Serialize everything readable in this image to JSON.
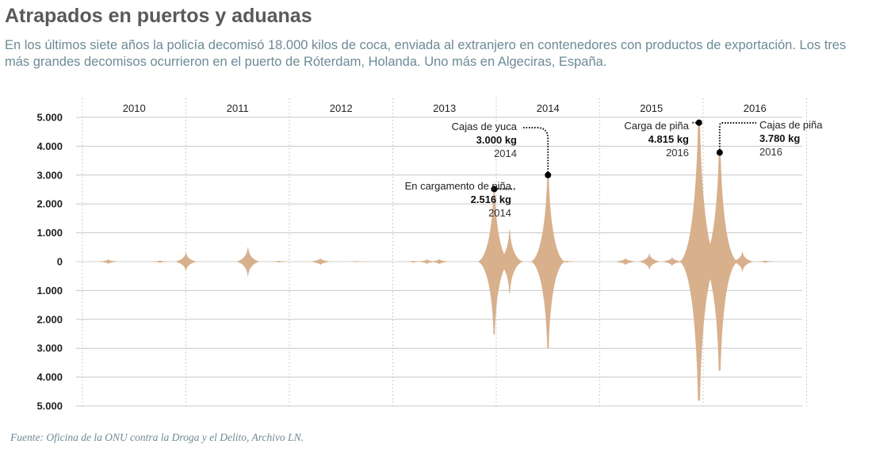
{
  "header": {
    "title": "Atrapados en puertos y aduanas",
    "subtitle": "En los últimos siete años la policía decomisó 18.000 kilos de coca, enviada al extranjero en contenedores con productos de exportación. Los tres más grandes decomisos ocurrieron en el puerto de Róterdam, Holanda. Uno más en Algeciras, España."
  },
  "footer": {
    "source": "Fuente: Oficina de la ONU contra la Droga y el Delito, Archivo LN."
  },
  "colors": {
    "spike": "#d8b08c",
    "grid": "#c8c8c8",
    "axis_text": "#222222",
    "marker": "#000000"
  },
  "chart_data": {
    "type": "area",
    "x_unit": "year",
    "xlim": [
      2010,
      2017
    ],
    "ylim": [
      -5000,
      5000
    ],
    "y_ticks": [
      5000,
      4000,
      3000,
      2000,
      1000,
      0,
      -1000,
      -2000,
      -3000,
      -4000,
      -5000
    ],
    "y_tick_labels": [
      "5.000",
      "4.000",
      "3.000",
      "2.000",
      "1.000",
      "0",
      "1.000",
      "2.000",
      "3.000",
      "4.000",
      "5.000"
    ],
    "year_labels": [
      "2010",
      "2011",
      "2012",
      "2013",
      "2014",
      "2015",
      "2016"
    ],
    "mirrored": true,
    "grid": true,
    "seizures": [
      {
        "x": 2010.25,
        "value": 80
      },
      {
        "x": 2010.75,
        "value": 40
      },
      {
        "x": 2011.0,
        "value": 330
      },
      {
        "x": 2011.6,
        "value": 500
      },
      {
        "x": 2011.9,
        "value": 30
      },
      {
        "x": 2012.3,
        "value": 120
      },
      {
        "x": 2012.65,
        "value": 20
      },
      {
        "x": 2013.2,
        "value": 30
      },
      {
        "x": 2013.33,
        "value": 80
      },
      {
        "x": 2013.45,
        "value": 90
      },
      {
        "x": 2013.98,
        "value": 2516
      },
      {
        "x": 2014.13,
        "value": 1100
      },
      {
        "x": 2014.42,
        "value": 60
      },
      {
        "x": 2014.5,
        "value": 3000
      },
      {
        "x": 2014.68,
        "value": 30
      },
      {
        "x": 2015.25,
        "value": 120
      },
      {
        "x": 2015.48,
        "value": 280
      },
      {
        "x": 2015.7,
        "value": 150
      },
      {
        "x": 2015.96,
        "value": 4815
      },
      {
        "x": 2016.16,
        "value": 3780
      },
      {
        "x": 2016.38,
        "value": 350
      },
      {
        "x": 2016.6,
        "value": 40
      }
    ],
    "annotations": [
      {
        "label": "En cargamento de piña",
        "value_text": "2.516 kg",
        "year": "2014",
        "x": 2013.98,
        "value": 2516
      },
      {
        "label": "Cajas de yuca",
        "value_text": "3.000 kg",
        "year": "2014",
        "x": 2014.5,
        "value": 3000
      },
      {
        "label": "Carga de piña",
        "value_text": "4.815 kg",
        "year": "2016",
        "x": 2015.96,
        "value": 4815
      },
      {
        "label": "Cajas de piña",
        "value_text": "3.780 kg",
        "year": "2016",
        "x": 2016.16,
        "value": 3780
      }
    ]
  }
}
